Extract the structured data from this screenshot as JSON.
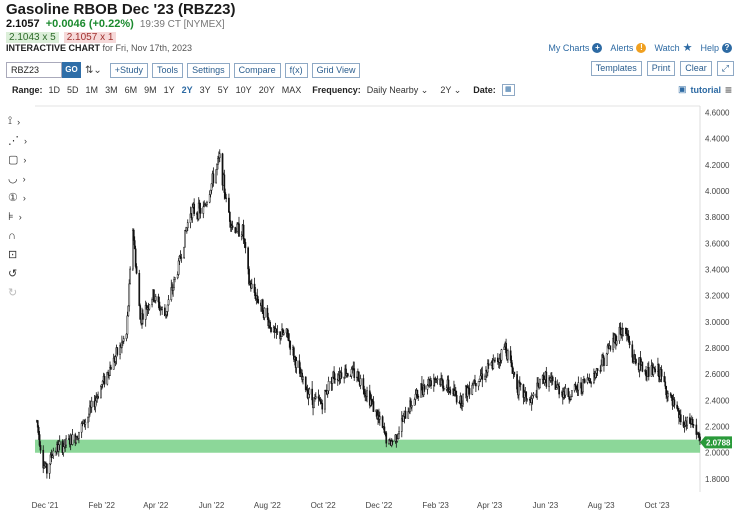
{
  "header": {
    "title": "Gasoline RBOB Dec '23 (RBZ23)",
    "price": "2.1057",
    "change": "+0.0046 (+0.22%)",
    "time": "19:39 CT [NYMEX]",
    "bid": "2.1043 x 5",
    "ask": "2.1057 x 1",
    "subtitle_bold": "INTERACTIVE CHART",
    "subtitle_rest": " for Fri, Nov 17th, 2023"
  },
  "top_links": {
    "my_charts": "My Charts",
    "alerts": "Alerts",
    "watch": "Watch",
    "help": "Help"
  },
  "toolbar": {
    "symbol": "RBZ23",
    "go": "GO",
    "buttons": [
      "+Study",
      "Tools",
      "Settings",
      "Compare",
      "f(x)",
      "Grid View"
    ],
    "right_buttons": [
      "Templates",
      "Print",
      "Clear"
    ]
  },
  "range_row": {
    "range_label": "Range:",
    "ranges": [
      "1D",
      "5D",
      "1M",
      "3M",
      "6M",
      "9M",
      "1Y",
      "2Y",
      "3Y",
      "5Y",
      "10Y",
      "20Y",
      "MAX"
    ],
    "active_range": "2Y",
    "frequency_label": "Frequency:",
    "frequency_value": "Daily Nearby",
    "period_value": "2Y",
    "date_label": "Date:",
    "tutorial": "tutorial"
  },
  "colors": {
    "support_band": "#7fd38e",
    "last_price_tag": "#2a9a3a",
    "candle": "#111111",
    "link": "#2d6aa3"
  },
  "chart_data": {
    "type": "candlestick",
    "title": "",
    "xlabel": "",
    "ylabel": "",
    "ylim": [
      1.7,
      4.65
    ],
    "y_ticks": [
      "4.6000",
      "4.4000",
      "4.2000",
      "4.0000",
      "3.8000",
      "3.6000",
      "3.4000",
      "3.2000",
      "3.0000",
      "2.8000",
      "2.6000",
      "2.4000",
      "2.2000",
      "2.0000",
      "1.8000"
    ],
    "y_tick_values": [
      4.6,
      4.4,
      4.2,
      4.0,
      3.8,
      3.6,
      3.4,
      3.2,
      3.0,
      2.8,
      2.6,
      2.4,
      2.2,
      2.0,
      1.8
    ],
    "x_ticks": [
      "Dec '21",
      "Feb '22",
      "Apr '22",
      "Jun '22",
      "Aug '22",
      "Oct '22",
      "Dec '22",
      "Feb '23",
      "Apr '23",
      "Jun '23",
      "Aug '23",
      "Oct '23"
    ],
    "x_range": [
      "2021-11-20",
      "2023-11-17"
    ],
    "last_price_label": "2.0788",
    "last_price": 2.0788,
    "support_band": [
      2.0,
      2.1
    ],
    "series": [
      {
        "values": [
          [
            "2021-11-22",
            2.24
          ],
          [
            "2021-11-29",
            1.92
          ],
          [
            "2021-12-03",
            1.86
          ],
          [
            "2021-12-10",
            2.02
          ],
          [
            "2021-12-20",
            2.05
          ],
          [
            "2022-01-03",
            2.12
          ],
          [
            "2022-01-17",
            2.28
          ],
          [
            "2022-02-01",
            2.52
          ],
          [
            "2022-02-15",
            2.72
          ],
          [
            "2022-02-28",
            2.9
          ],
          [
            "2022-03-07",
            3.72
          ],
          [
            "2022-03-15",
            3.02
          ],
          [
            "2022-03-29",
            3.2
          ],
          [
            "2022-04-11",
            3.05
          ],
          [
            "2022-04-25",
            3.4
          ],
          [
            "2022-05-09",
            3.85
          ],
          [
            "2022-05-23",
            3.85
          ],
          [
            "2022-06-03",
            4.1
          ],
          [
            "2022-06-10",
            4.25
          ],
          [
            "2022-06-17",
            3.92
          ],
          [
            "2022-06-24",
            3.72
          ],
          [
            "2022-07-05",
            3.7
          ],
          [
            "2022-07-12",
            3.3
          ],
          [
            "2022-07-26",
            3.12
          ],
          [
            "2022-08-09",
            2.9
          ],
          [
            "2022-08-23",
            2.9
          ],
          [
            "2022-09-06",
            2.58
          ],
          [
            "2022-09-20",
            2.4
          ],
          [
            "2022-09-30",
            2.38
          ],
          [
            "2022-10-10",
            2.58
          ],
          [
            "2022-10-24",
            2.62
          ],
          [
            "2022-11-07",
            2.6
          ],
          [
            "2022-11-21",
            2.42
          ],
          [
            "2022-12-05",
            2.18
          ],
          [
            "2022-12-12",
            2.06
          ],
          [
            "2022-12-19",
            2.12
          ],
          [
            "2023-01-03",
            2.35
          ],
          [
            "2023-01-17",
            2.5
          ],
          [
            "2023-01-31",
            2.58
          ],
          [
            "2023-02-14",
            2.5
          ],
          [
            "2023-02-28",
            2.4
          ],
          [
            "2023-03-14",
            2.55
          ],
          [
            "2023-03-28",
            2.62
          ],
          [
            "2023-04-11",
            2.72
          ],
          [
            "2023-04-18",
            2.82
          ],
          [
            "2023-05-02",
            2.5
          ],
          [
            "2023-05-16",
            2.38
          ],
          [
            "2023-05-30",
            2.58
          ],
          [
            "2023-06-13",
            2.5
          ],
          [
            "2023-06-27",
            2.44
          ],
          [
            "2023-07-11",
            2.52
          ],
          [
            "2023-07-25",
            2.6
          ],
          [
            "2023-08-08",
            2.78
          ],
          [
            "2023-08-22",
            2.94
          ],
          [
            "2023-08-29",
            2.9
          ],
          [
            "2023-09-05",
            2.72
          ],
          [
            "2023-09-19",
            2.62
          ],
          [
            "2023-10-03",
            2.62
          ],
          [
            "2023-10-17",
            2.38
          ],
          [
            "2023-10-31",
            2.2
          ],
          [
            "2023-11-08",
            2.24
          ],
          [
            "2023-11-17",
            2.08
          ]
        ]
      }
    ]
  }
}
